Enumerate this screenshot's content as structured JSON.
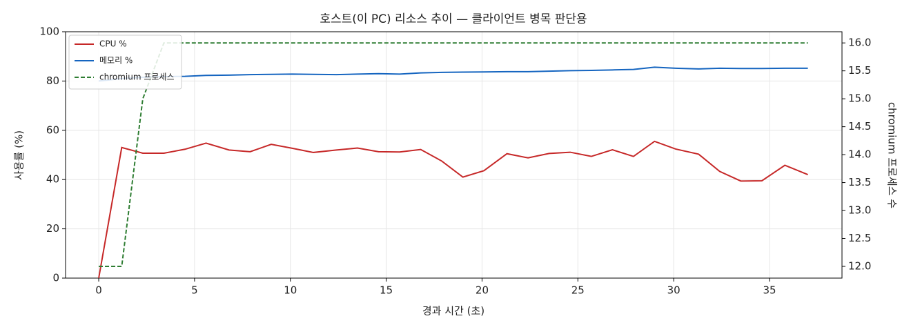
{
  "chart_data": {
    "type": "line",
    "title": "호스트(이 PC) 리소스 추이 — 클라이언트 병목 판단용",
    "x_label": "경과 시간 (초)",
    "y_label": "사용률 (%)",
    "y2_label": "chromium 프로세스 수",
    "x": [
      0,
      1.2,
      2.3,
      3.4,
      4.5,
      5.6,
      6.8,
      7.9,
      9.0,
      10.1,
      11.2,
      12.4,
      13.5,
      14.6,
      15.7,
      16.8,
      17.9,
      19.0,
      20.1,
      21.3,
      22.4,
      23.5,
      24.6,
      25.7,
      26.8,
      27.9,
      29.0,
      30.1,
      31.3,
      32.4,
      33.5,
      34.6,
      35.8,
      37.0
    ],
    "series": [
      {
        "name": "CPU %",
        "color": "#c62828",
        "style": "solid",
        "values": [
          0,
          53,
          50.7,
          50.7,
          52.3,
          54.8,
          52,
          51.3,
          54.3,
          52.7,
          51,
          52,
          52.8,
          51.3,
          51.2,
          52.2,
          47.5,
          41,
          43.6,
          50.5,
          48.8,
          50.6,
          51.1,
          49.4,
          52.1,
          49.4,
          55.5,
          52.4,
          50.3,
          43.3,
          39.4,
          39.5,
          45.8,
          42
        ]
      },
      {
        "name": "메모리 %",
        "color": "#1565c0",
        "style": "solid",
        "values": [
          80,
          81,
          81.5,
          81.8,
          81.9,
          82.3,
          82.4,
          82.6,
          82.7,
          82.8,
          82.7,
          82.6,
          82.8,
          83,
          82.8,
          83.3,
          83.5,
          83.6,
          83.7,
          83.8,
          83.8,
          84,
          84.2,
          84.3,
          84.5,
          84.7,
          85.6,
          85.2,
          84.9,
          85.2,
          85.1,
          85.1,
          85.2,
          85.2
        ]
      },
      {
        "name": "chromium 프로세스",
        "color": "#2e7d32",
        "style": "dashed",
        "axis": "y2",
        "values": [
          12,
          12,
          15,
          16,
          16,
          16,
          16,
          16,
          16,
          16,
          16,
          16,
          16,
          16,
          16,
          16,
          16,
          16,
          16,
          16,
          16,
          16,
          16,
          16,
          16,
          16,
          16,
          16,
          16,
          16,
          16,
          16,
          16,
          16
        ]
      }
    ],
    "xlim": [
      -1.73,
      38.78
    ],
    "xticks": [
      0,
      5,
      10,
      15,
      20,
      25,
      30,
      35
    ],
    "ylim": [
      0,
      100
    ],
    "yticks": [
      0,
      20,
      40,
      60,
      80,
      100
    ],
    "y2lim": [
      11.79,
      16.2
    ],
    "y2ticks": [
      {
        "value": 12,
        "label": "12.0"
      },
      12.5,
      {
        "value": 13,
        "label": "13.0"
      },
      13.5,
      {
        "value": 14,
        "label": "14.0"
      },
      14.5,
      {
        "value": 15,
        "label": "15.0"
      },
      15.5,
      {
        "value": 16,
        "label": "16.0"
      }
    ],
    "grid": true,
    "legend": "upper-left"
  }
}
